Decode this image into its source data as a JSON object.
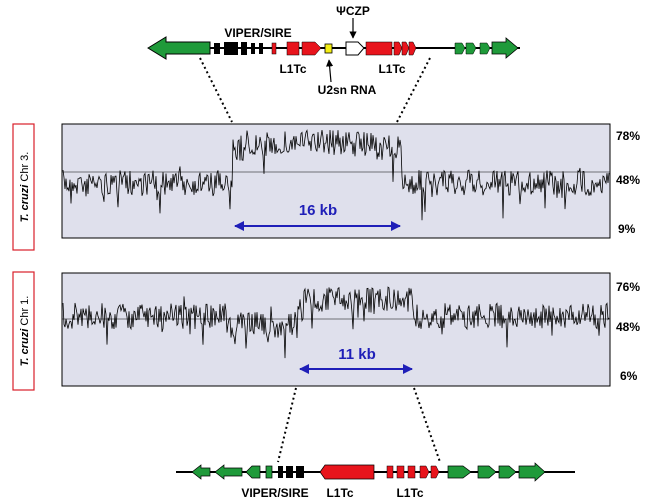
{
  "top_map": {
    "labels": {
      "viper": "VIPER/SIRE",
      "psi": "ΨCZP",
      "l1tc_a": "L1Tc",
      "l1tc_b": "L1Tc",
      "u2": "U2sn RNA"
    }
  },
  "chr3": {
    "label_italic": "T. cruzi",
    "label_rest": " Chr 3.",
    "y_top": "78%",
    "y_mid": "48%",
    "y_bottom": "9%",
    "span_label": "16 kb"
  },
  "chr1": {
    "label_italic": "T. cruzi",
    "label_rest": " Chr 1.",
    "y_top": "76%",
    "y_mid": "48%",
    "y_bottom": "6%",
    "span_label": "11 kb"
  },
  "bottom_map": {
    "labels": {
      "viper": "VIPER/SIRE",
      "l1tc_a": "L1Tc",
      "l1tc_b": "L1Tc"
    }
  },
  "colors": {
    "gene_green": "#1f9a3a",
    "l1tc_red": "#e8141c",
    "viper_black": "#000000",
    "u2_yellow": "#f4ee14",
    "psi_white": "#ffffff",
    "plot_bg": "#dfe0ec",
    "arrow_blue": "#1f1fb8"
  }
}
